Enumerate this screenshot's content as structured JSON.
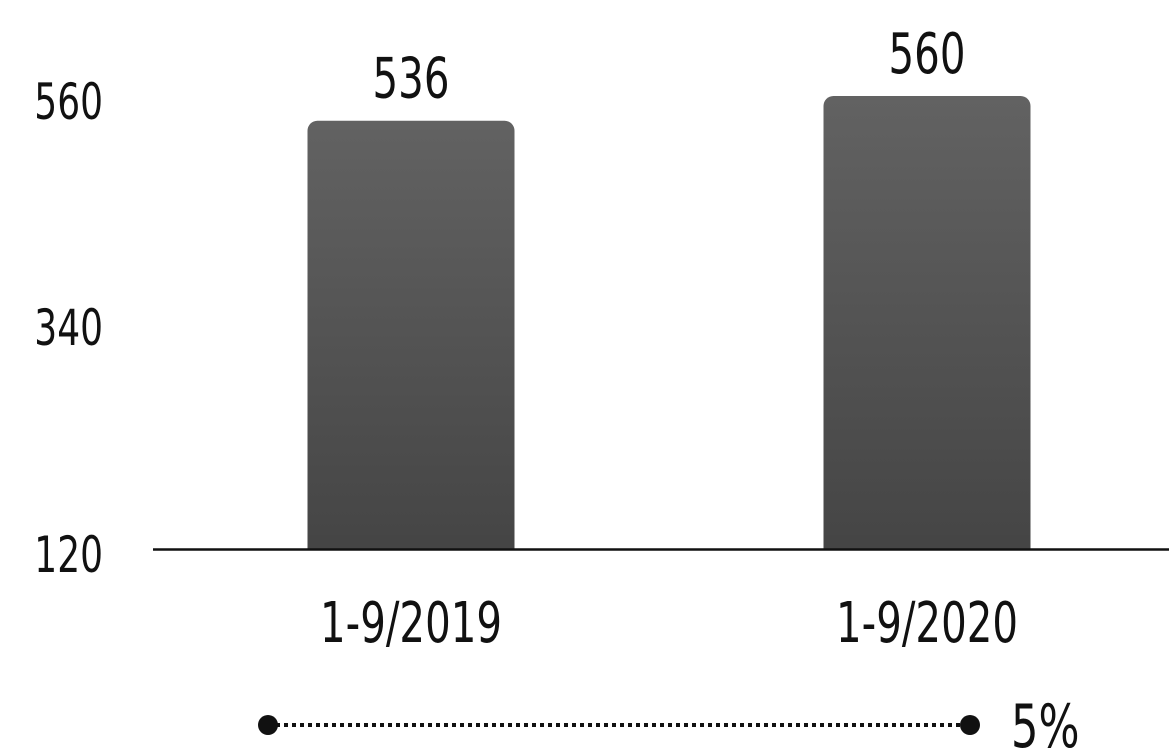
{
  "chart_data": {
    "type": "bar",
    "categories": [
      "1-9/2019",
      "1-9/2020"
    ],
    "values": [
      536,
      560
    ],
    "data_labels": [
      "536",
      "560"
    ],
    "yticks": [
      {
        "value": 120,
        "label": "120"
      },
      {
        "value": 340,
        "label": "340"
      },
      {
        "value": 560,
        "label": "560"
      }
    ],
    "ylim": [
      120,
      560
    ],
    "grid": false,
    "bar_color_top": "#626262",
    "bar_color_bottom": "#454545",
    "change": {
      "from": "1-9/2019",
      "to": "1-9/2020",
      "label": "5%"
    }
  }
}
